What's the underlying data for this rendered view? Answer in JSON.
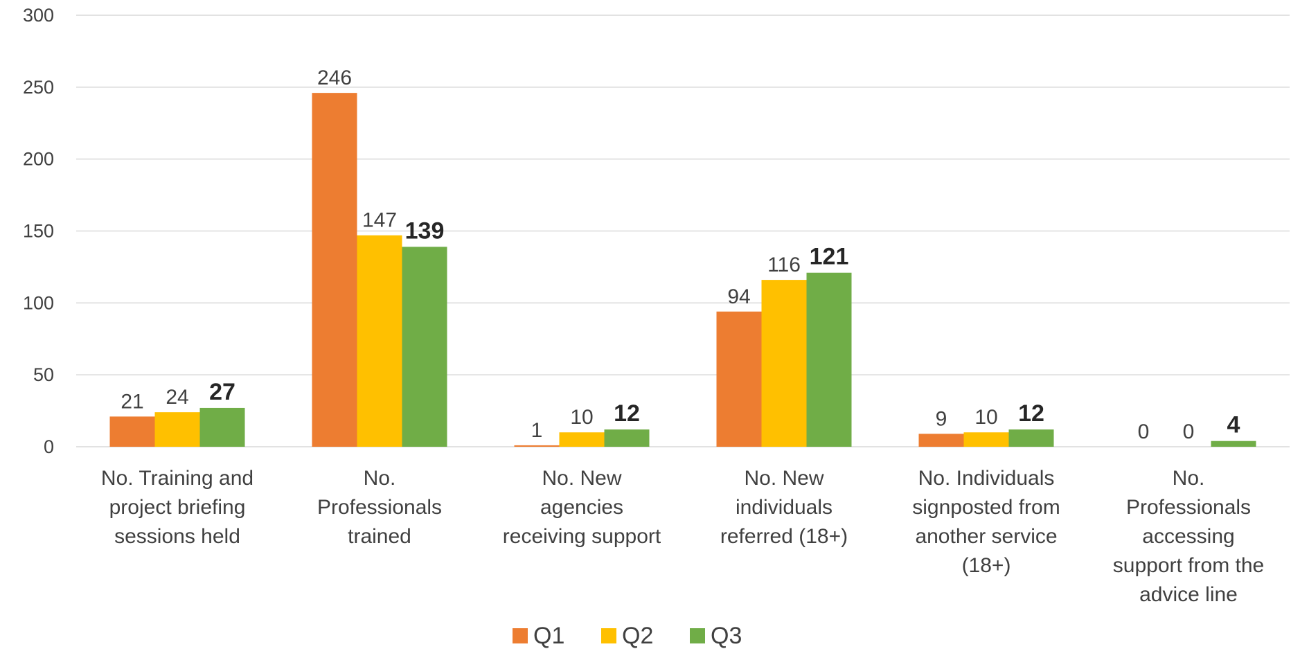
{
  "chart_data": {
    "type": "bar",
    "categories": [
      [
        "No. Training and",
        "project briefing",
        "sessions held"
      ],
      [
        "No.",
        "Professionals",
        "trained"
      ],
      [
        "No. New",
        "agencies",
        "receiving support"
      ],
      [
        "No. New",
        "individuals",
        "referred (18+)"
      ],
      [
        "No. Individuals",
        "signposted from",
        "another service",
        "(18+)"
      ],
      [
        "No.",
        "Professionals",
        "accessing",
        "support from the",
        "advice line"
      ]
    ],
    "series": [
      {
        "name": "Q1",
        "color": "#ED7D31",
        "values": [
          21,
          246,
          1,
          94,
          9,
          0
        ],
        "bold_labels": false
      },
      {
        "name": "Q2",
        "color": "#FFC000",
        "values": [
          24,
          147,
          10,
          116,
          10,
          0
        ],
        "bold_labels": false
      },
      {
        "name": "Q3",
        "color": "#70AD47",
        "values": [
          27,
          139,
          12,
          121,
          12,
          4
        ],
        "bold_labels": true
      }
    ],
    "ylim": [
      0,
      300
    ],
    "yticks": [
      "0",
      "50",
      "100",
      "150",
      "200",
      "250",
      "300"
    ],
    "grid": true,
    "legend_position": "bottom"
  }
}
